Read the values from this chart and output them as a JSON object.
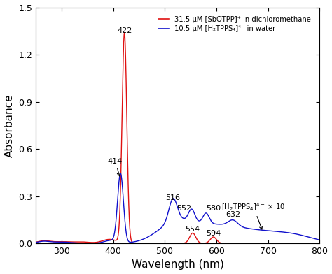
{
  "title": "",
  "xlabel": "Wavelength (nm)",
  "ylabel": "Absorbance",
  "xlim": [
    250,
    800
  ],
  "ylim": [
    -0.02,
    1.5
  ],
  "yticks": [
    0.0,
    0.3,
    0.6,
    0.9,
    1.2,
    1.5
  ],
  "xticks": [
    300,
    400,
    500,
    600,
    700,
    800
  ],
  "red_color": "#e01010",
  "blue_color": "#1010cc",
  "legend": [
    "31.5 μM [SbOTPP]⁺ in dichloromethane",
    "10.5 μM [H₂TPPS₄]⁴⁻ in water"
  ]
}
